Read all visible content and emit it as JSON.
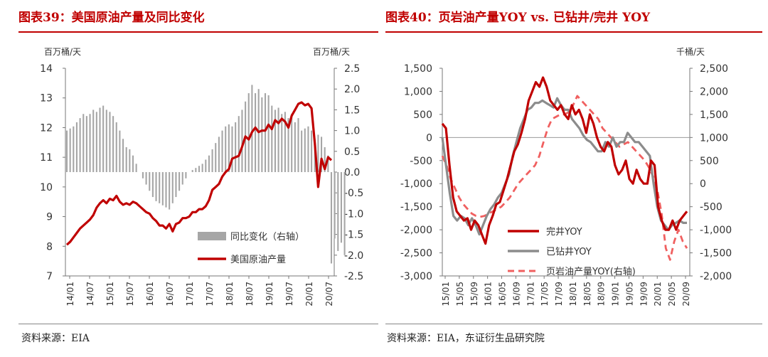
{
  "panel1": {
    "title": "图表39：美国原油产量及同比变化",
    "source": "资料来源：EIA",
    "unit_left": "百万桶/天",
    "unit_right": "百万桶/天"
  },
  "panel2": {
    "title": "图表40：页岩油产量YOY vs. 已钻井/完井 YOY",
    "source": "资料来源：EIA，东证衍生品研究院",
    "unit_right": "千桶/天"
  },
  "colors": {
    "red": "#c00000",
    "gray": "#8c8c8c",
    "bar": "#a6a6a6",
    "dash": "#f06060",
    "title": "#c00000"
  },
  "chart_data": [
    {
      "type": "bar+line",
      "x_ticks": [
        "14/01",
        "14/07",
        "15/01",
        "15/07",
        "16/01",
        "16/07",
        "17/01",
        "17/07",
        "18/01",
        "18/07",
        "19/01",
        "19/07",
        "20/01",
        "20/07"
      ],
      "y_left": {
        "lim": [
          7,
          14
        ],
        "ticks": [
          7,
          8,
          9,
          10,
          11,
          12,
          13,
          14
        ]
      },
      "y_right": {
        "lim": [
          -2.5,
          2.5
        ],
        "ticks": [
          "2.5",
          "2.0",
          "1.5",
          "1.0",
          "0.5",
          "0.0",
          "-0.5",
          "-1.0",
          "-1.5",
          "-2.0",
          "-2.5"
        ]
      },
      "legend": [
        {
          "name": "同比变化（右轴）",
          "kind": "bar"
        },
        {
          "name": "美国原油产量",
          "kind": "line"
        }
      ],
      "legend_position": "bottom-right",
      "series": [
        {
          "name": "同比变化（右轴）",
          "axis": "right",
          "type": "bar",
          "values": [
            1.0,
            1.05,
            1.1,
            1.2,
            1.3,
            1.4,
            1.35,
            1.4,
            1.5,
            1.45,
            1.55,
            1.6,
            1.5,
            1.45,
            1.35,
            1.2,
            1.0,
            0.8,
            0.6,
            0.55,
            0.4,
            0.2,
            0.0,
            -0.15,
            -0.3,
            -0.45,
            -0.6,
            -0.7,
            -0.75,
            -0.8,
            -0.85,
            -0.9,
            -0.75,
            -0.6,
            -0.45,
            -0.3,
            -0.15,
            0.0,
            0.05,
            0.1,
            0.15,
            0.2,
            0.3,
            0.4,
            0.55,
            0.7,
            0.85,
            1.0,
            1.1,
            1.15,
            1.1,
            1.2,
            1.35,
            1.5,
            1.7,
            1.9,
            2.1,
            1.9,
            2.0,
            1.8,
            1.9,
            1.85,
            1.6,
            1.5,
            1.55,
            1.4,
            1.45,
            1.3,
            1.4,
            1.2,
            1.3,
            1.0,
            1.05,
            1.1,
            1.0,
            0.8,
            0.9,
            0.85,
            0.6,
            0.4,
            -2.2,
            -1.6,
            -1.9,
            -1.7,
            -2.0
          ]
        },
        {
          "name": "美国原油产量",
          "axis": "left",
          "type": "line",
          "values": [
            8.05,
            8.15,
            8.3,
            8.45,
            8.6,
            8.7,
            8.8,
            8.9,
            9.05,
            9.3,
            9.45,
            9.55,
            9.45,
            9.6,
            9.55,
            9.7,
            9.5,
            9.4,
            9.45,
            9.4,
            9.5,
            9.45,
            9.35,
            9.25,
            9.15,
            9.1,
            8.95,
            8.85,
            8.7,
            8.7,
            8.6,
            8.75,
            8.5,
            8.75,
            8.8,
            8.95,
            8.95,
            9.0,
            9.15,
            9.15,
            9.25,
            9.25,
            9.35,
            9.55,
            9.9,
            10.0,
            10.1,
            10.35,
            10.5,
            10.6,
            10.95,
            11.0,
            11.05,
            11.35,
            11.7,
            11.6,
            11.85,
            12.0,
            11.85,
            11.9,
            11.9,
            12.1,
            11.95,
            12.25,
            12.15,
            12.3,
            12.2,
            12.0,
            12.4,
            12.6,
            12.8,
            12.85,
            12.75,
            12.8,
            12.65,
            11.45,
            10.0,
            10.95,
            10.6,
            11.0,
            10.9
          ]
        }
      ]
    },
    {
      "type": "line",
      "x_ticks": [
        "15/01",
        "15/05",
        "15/09",
        "16/01",
        "16/05",
        "16/09",
        "17/01",
        "17/05",
        "17/09",
        "18/01",
        "18/05",
        "18/09",
        "19/01",
        "19/05",
        "19/09",
        "20/01",
        "20/05",
        "20/09"
      ],
      "y_left": {
        "lim": [
          -3000,
          1500
        ],
        "ticks": [
          "1,500",
          "1,000",
          "500",
          "0",
          "-500",
          "-1,000",
          "-1,500",
          "-2,000",
          "-2,500",
          "-3,000"
        ]
      },
      "y_right": {
        "lim": [
          -2000,
          2500
        ],
        "ticks": [
          "2,500",
          "2,000",
          "1,500",
          "1,000",
          "500",
          "0",
          "-500",
          "-1,000",
          "-1,500",
          "-2,000"
        ]
      },
      "legend": [
        {
          "name": "完井YOY",
          "kind": "red"
        },
        {
          "name": "已钻井YOY",
          "kind": "gray"
        },
        {
          "name": "页岩油产量YOY(右轴)",
          "kind": "dash"
        }
      ],
      "legend_position": "bottom-center",
      "series": [
        {
          "name": "完井YOY",
          "axis": "left",
          "values": [
            300,
            200,
            -600,
            -1300,
            -1600,
            -1700,
            -1800,
            -1750,
            -2000,
            -1800,
            -1900,
            -2100,
            -2300,
            -1900,
            -1700,
            -1450,
            -1400,
            -1150,
            -900,
            -600,
            -300,
            -150,
            100,
            400,
            800,
            1000,
            1200,
            1100,
            1300,
            1100,
            800,
            700,
            600,
            700,
            500,
            400,
            700,
            500,
            600,
            400,
            100,
            500,
            300,
            0,
            -200,
            -300,
            -100,
            -200,
            -600,
            -800,
            -700,
            -500,
            -900,
            -1000,
            -700,
            -900,
            -1000,
            -1000,
            -500,
            -600,
            -1500,
            -1800,
            -2000,
            -2000,
            -1800,
            -2000,
            -1800,
            -1700,
            -1600
          ]
        },
        {
          "name": "已钻井YOY",
          "axis": "left",
          "values": [
            0,
            -600,
            -1200,
            -1700,
            -1800,
            -1700,
            -1750,
            -1900,
            -1750,
            -1900,
            -2100,
            -1900,
            -1700,
            -1550,
            -1450,
            -1300,
            -1200,
            -1000,
            -800,
            -400,
            -100,
            200,
            400,
            600,
            650,
            750,
            750,
            800,
            750,
            700,
            650,
            850,
            700,
            600,
            600,
            400,
            300,
            200,
            50,
            -50,
            -100,
            -200,
            -300,
            -300,
            -100,
            -200,
            0,
            -200,
            -100,
            -100,
            100,
            0,
            -100,
            -100,
            -200,
            -300,
            -400,
            -1000,
            -1500,
            -1800,
            -1900,
            -2000,
            -1900,
            -1850,
            -1800,
            -1850,
            -1850
          ]
        },
        {
          "name": "页岩油产量YOY(右轴)",
          "axis": "right",
          "dash": true,
          "values": [
            600,
            400,
            100,
            -100,
            -300,
            -450,
            -550,
            -650,
            -700,
            -720,
            -700,
            -650,
            -600,
            -550,
            -500,
            -400,
            -300,
            -150,
            0,
            100,
            200,
            300,
            400,
            600,
            900,
            1200,
            1400,
            1450,
            1500,
            1500,
            1550,
            1700,
            1900,
            1800,
            1700,
            1600,
            1500,
            1400,
            1200,
            1100,
            1000,
            900,
            800,
            850,
            900,
            800,
            700,
            600,
            500,
            350,
            150,
            -150,
            -650,
            -1400,
            -1650,
            -1250,
            -1000,
            -1250,
            -1400
          ]
        }
      ]
    }
  ]
}
